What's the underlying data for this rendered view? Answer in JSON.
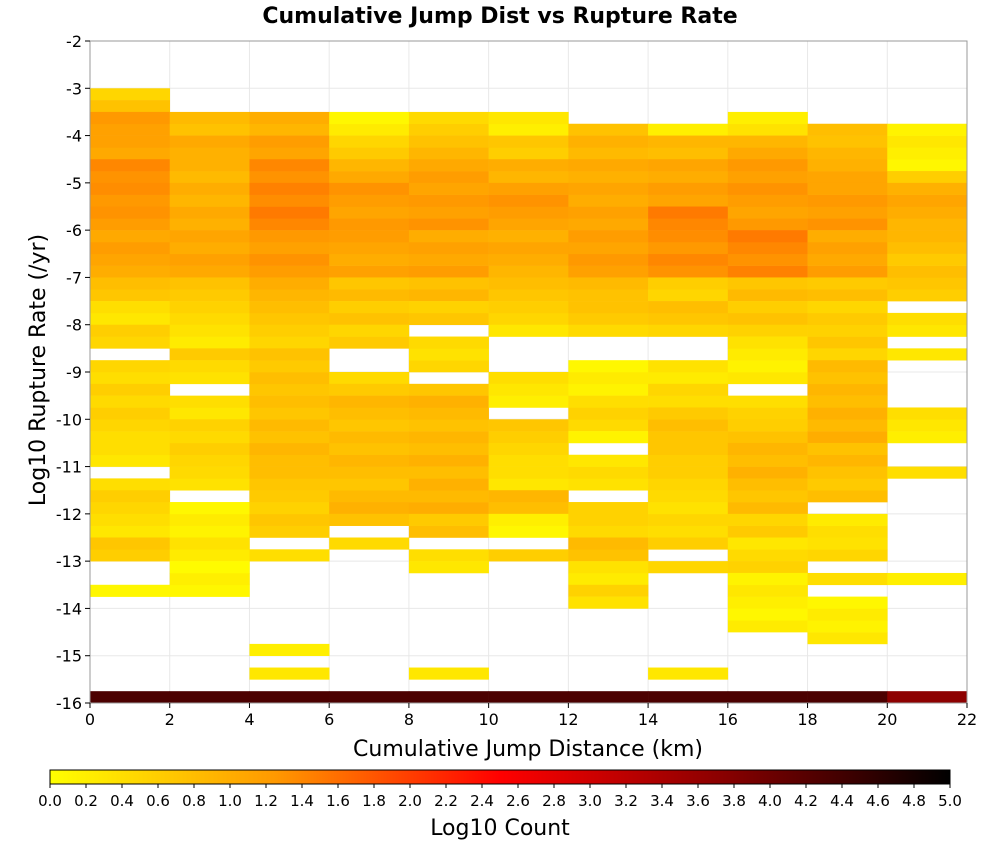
{
  "chart_data": {
    "type": "heatmap",
    "title": "Cumulative Jump Dist vs Rupture Rate",
    "xlabel": "Cumulative Jump Distance (km)",
    "ylabel": "Log10 Rupture Rate (/yr)",
    "xlim": [
      0,
      22
    ],
    "ylim": [
      -16,
      -2
    ],
    "x_ticks": [
      "0",
      "2",
      "4",
      "6",
      "8",
      "10",
      "12",
      "14",
      "16",
      "18",
      "20",
      "22"
    ],
    "y_ticks": [
      "-2",
      "-3",
      "-4",
      "-5",
      "-6",
      "-7",
      "-8",
      "-9",
      "-10",
      "-11",
      "-12",
      "-13",
      "-14",
      "-15",
      "-16"
    ],
    "x_bin_width": 2,
    "y_bin_height": 0.25,
    "colorbar": {
      "label": "Log10 Count",
      "range": [
        0,
        5
      ],
      "ticks": [
        "0.0",
        "0.2",
        "0.4",
        "0.6",
        "0.8",
        "1.0",
        "1.2",
        "1.4",
        "1.6",
        "1.8",
        "2.0",
        "2.2",
        "2.4",
        "2.6",
        "2.8",
        "3.0",
        "3.2",
        "3.4",
        "3.6",
        "3.8",
        "4.0",
        "4.2",
        "4.4",
        "4.6",
        "4.8",
        "5.0"
      ],
      "colors": [
        "#ffff00",
        "#ff9900",
        "#ff0000",
        "#880000",
        "#000000"
      ]
    },
    "cells": [
      {
        "x0": 0,
        "runs": [
          [
            -3.25,
            -3.0,
            0.6
          ],
          [
            -3.5,
            -3.25,
            0.85
          ],
          [
            -4.0,
            -3.5,
            1.25
          ],
          [
            -4.5,
            -4.0,
            1.15
          ],
          [
            -5.0,
            -4.5,
            1.4
          ],
          [
            -5.5,
            -5.0,
            1.35
          ],
          [
            -6.0,
            -5.5,
            1.3
          ],
          [
            -7.0,
            -6.0,
            1.1
          ],
          [
            -7.5,
            -7.0,
            0.8
          ],
          [
            -8.0,
            -7.5,
            0.4
          ],
          [
            -8.5,
            -8.0,
            0.6
          ],
          [
            -9.25,
            -8.75,
            0.5
          ],
          [
            -9.5,
            -9.25,
            0.7
          ],
          [
            -10.5,
            -9.5,
            0.5
          ],
          [
            -11.0,
            -10.5,
            0.4
          ],
          [
            -11.5,
            -11.25,
            0.5
          ],
          [
            -12.0,
            -11.5,
            0.6
          ],
          [
            -12.5,
            -12.0,
            0.4
          ],
          [
            -13.0,
            -12.5,
            0.7
          ],
          [
            -13.75,
            -13.5,
            0.2
          ]
        ]
      },
      {
        "x0": 2,
        "runs": [
          [
            -4.0,
            -3.5,
            0.8
          ],
          [
            -4.5,
            -4.0,
            1.0
          ],
          [
            -5.0,
            -4.5,
            0.9
          ],
          [
            -6.0,
            -5.0,
            1.0
          ],
          [
            -7.0,
            -6.0,
            1.1
          ],
          [
            -7.5,
            -7.0,
            0.7
          ],
          [
            -8.0,
            -7.5,
            0.5
          ],
          [
            -8.5,
            -8.0,
            0.3
          ],
          [
            -8.75,
            -8.5,
            0.7
          ],
          [
            -9.25,
            -8.75,
            0.4
          ],
          [
            -10.0,
            -9.5,
            0.35
          ],
          [
            -11.0,
            -10.0,
            0.55
          ],
          [
            -11.5,
            -11.0,
            0.4
          ],
          [
            -12.5,
            -11.75,
            0.2
          ],
          [
            -13.0,
            -12.5,
            0.3
          ],
          [
            -13.75,
            -13.0,
            0.15
          ]
        ]
      },
      {
        "x0": 4,
        "runs": [
          [
            -4.0,
            -3.5,
            0.9
          ],
          [
            -4.5,
            -4.0,
            1.1
          ],
          [
            -5.0,
            -4.5,
            1.3
          ],
          [
            -6.0,
            -5.0,
            1.4
          ],
          [
            -7.0,
            -6.0,
            1.2
          ],
          [
            -7.5,
            -7.0,
            0.9
          ],
          [
            -8.0,
            -7.5,
            0.7
          ],
          [
            -8.5,
            -8.0,
            0.5
          ],
          [
            -9.5,
            -8.5,
            0.7
          ],
          [
            -11.0,
            -9.5,
            0.8
          ],
          [
            -11.5,
            -11.0,
            0.7
          ],
          [
            -12.5,
            -11.5,
            0.6
          ],
          [
            -13.0,
            -12.75,
            0.4
          ],
          [
            -15.0,
            -14.75,
            0.2
          ],
          [
            -15.5,
            -15.25,
            0.3
          ]
        ]
      },
      {
        "x0": 6,
        "runs": [
          [
            -4.0,
            -3.5,
            0.2
          ],
          [
            -4.5,
            -4.0,
            0.6
          ],
          [
            -5.0,
            -4.5,
            1.0
          ],
          [
            -6.0,
            -5.0,
            1.2
          ],
          [
            -7.0,
            -6.0,
            1.1
          ],
          [
            -7.5,
            -7.0,
            0.8
          ],
          [
            -8.0,
            -7.5,
            0.7
          ],
          [
            -8.5,
            -8.0,
            0.6
          ],
          [
            -9.25,
            -9.0,
            0.4
          ],
          [
            -9.5,
            -9.25,
            0.6
          ],
          [
            -11.75,
            -9.5,
            0.8
          ],
          [
            -12.0,
            -11.75,
            0.9
          ],
          [
            -12.25,
            -12.0,
            0.7
          ],
          [
            -12.75,
            -12.5,
            0.4
          ]
        ]
      },
      {
        "x0": 8,
        "runs": [
          [
            -4.0,
            -3.5,
            0.5
          ],
          [
            -4.5,
            -4.0,
            0.8
          ],
          [
            -5.0,
            -4.5,
            1.1
          ],
          [
            -6.0,
            -5.0,
            1.2
          ],
          [
            -7.0,
            -6.0,
            1.1
          ],
          [
            -7.5,
            -7.0,
            0.8
          ],
          [
            -8.0,
            -7.5,
            0.6
          ],
          [
            -9.0,
            -8.25,
            0.4
          ],
          [
            -9.5,
            -9.25,
            0.6
          ],
          [
            -11.0,
            -9.5,
            0.85
          ],
          [
            -12.0,
            -11.0,
            0.9
          ],
          [
            -12.5,
            -12.0,
            0.7
          ],
          [
            -13.0,
            -12.75,
            0.3
          ],
          [
            -13.25,
            -13.0,
            0.2
          ],
          [
            -15.5,
            -15.25,
            0.2
          ]
        ]
      },
      {
        "x0": 10,
        "runs": [
          [
            -4.0,
            -3.5,
            0.3
          ],
          [
            -4.5,
            -4.0,
            0.7
          ],
          [
            -5.0,
            -4.5,
            1.0
          ],
          [
            -6.0,
            -5.0,
            1.2
          ],
          [
            -7.0,
            -6.0,
            1.0
          ],
          [
            -7.5,
            -7.0,
            0.8
          ],
          [
            -8.0,
            -7.5,
            0.6
          ],
          [
            -8.25,
            -8.0,
            0.4
          ],
          [
            -9.25,
            -9.0,
            0.5
          ],
          [
            -9.75,
            -9.25,
            0.3
          ],
          [
            -10.5,
            -10.0,
            0.7
          ],
          [
            -11.0,
            -10.5,
            0.5
          ],
          [
            -11.5,
            -11.0,
            0.4
          ],
          [
            -12.0,
            -11.5,
            0.9
          ],
          [
            -12.5,
            -12.0,
            0.2
          ],
          [
            -13.0,
            -12.75,
            0.7
          ]
        ]
      },
      {
        "x0": 12,
        "runs": [
          [
            -4.0,
            -3.75,
            0.8
          ],
          [
            -4.5,
            -4.0,
            0.9
          ],
          [
            -5.0,
            -4.5,
            1.0
          ],
          [
            -6.0,
            -5.0,
            1.1
          ],
          [
            -7.0,
            -6.0,
            1.2
          ],
          [
            -7.5,
            -7.0,
            0.8
          ],
          [
            -8.0,
            -7.5,
            0.7
          ],
          [
            -8.25,
            -8.0,
            0.5
          ],
          [
            -9.5,
            -8.75,
            0.2
          ],
          [
            -10.25,
            -9.5,
            0.5
          ],
          [
            -10.5,
            -10.25,
            0.2
          ],
          [
            -11.5,
            -10.75,
            0.4
          ],
          [
            -12.0,
            -11.75,
            0.6
          ],
          [
            -12.5,
            -12.0,
            0.5
          ],
          [
            -13.0,
            -12.5,
            0.8
          ],
          [
            -13.5,
            -13.0,
            0.3
          ],
          [
            -13.75,
            -13.5,
            0.6
          ],
          [
            -14.0,
            -13.75,
            0.4
          ]
        ]
      },
      {
        "x0": 14,
        "runs": [
          [
            -4.0,
            -3.75,
            0.2
          ],
          [
            -4.5,
            -4.0,
            0.8
          ],
          [
            -5.0,
            -4.5,
            1.0
          ],
          [
            -5.5,
            -5.0,
            1.1
          ],
          [
            -6.0,
            -5.5,
            1.4
          ],
          [
            -7.0,
            -6.0,
            1.3
          ],
          [
            -7.5,
            -7.0,
            0.5
          ],
          [
            -8.0,
            -7.5,
            0.7
          ],
          [
            -8.25,
            -8.0,
            0.5
          ],
          [
            -9.25,
            -8.75,
            0.25
          ],
          [
            -9.75,
            -9.25,
            0.4
          ],
          [
            -10.5,
            -9.75,
            0.7
          ],
          [
            -11.0,
            -10.5,
            0.6
          ],
          [
            -11.5,
            -11.0,
            0.5
          ],
          [
            -12.5,
            -11.5,
            0.4
          ],
          [
            -12.75,
            -12.5,
            0.6
          ],
          [
            -13.25,
            -13.0,
            0.5
          ],
          [
            -15.5,
            -15.25,
            0.3
          ]
        ]
      },
      {
        "x0": 16,
        "runs": [
          [
            -4.0,
            -3.5,
            0.3
          ],
          [
            -4.5,
            -4.0,
            1.0
          ],
          [
            -6.0,
            -4.5,
            1.2
          ],
          [
            -7.0,
            -6.0,
            1.4
          ],
          [
            -7.5,
            -7.0,
            0.8
          ],
          [
            -8.0,
            -7.5,
            0.7
          ],
          [
            -8.25,
            -8.0,
            0.5
          ],
          [
            -9.25,
            -8.25,
            0.25
          ],
          [
            -10.0,
            -9.5,
            0.5
          ],
          [
            -10.5,
            -10.0,
            0.7
          ],
          [
            -11.25,
            -10.5,
            0.9
          ],
          [
            -12.0,
            -11.25,
            0.8
          ],
          [
            -12.5,
            -12.0,
            0.6
          ],
          [
            -13.0,
            -12.5,
            0.4
          ],
          [
            -13.25,
            -13.0,
            0.5
          ],
          [
            -14.5,
            -13.25,
            0.2
          ]
        ]
      },
      {
        "x0": 18,
        "runs": [
          [
            -4.0,
            -3.75,
            0.7
          ],
          [
            -4.5,
            -4.0,
            0.8
          ],
          [
            -5.0,
            -4.5,
            1.0
          ],
          [
            -6.0,
            -5.0,
            1.2
          ],
          [
            -7.0,
            -6.0,
            1.1
          ],
          [
            -7.5,
            -7.0,
            0.7
          ],
          [
            -8.5,
            -7.5,
            0.6
          ],
          [
            -8.75,
            -8.5,
            0.4
          ],
          [
            -9.5,
            -8.75,
            0.8
          ],
          [
            -10.5,
            -9.5,
            0.9
          ],
          [
            -11.0,
            -10.5,
            0.8
          ],
          [
            -11.75,
            -11.0,
            0.7
          ],
          [
            -12.5,
            -12.0,
            0.3
          ],
          [
            -13.0,
            -12.5,
            0.4
          ],
          [
            -13.5,
            -13.25,
            0.3
          ],
          [
            -14.75,
            -13.75,
            0.2
          ]
        ]
      },
      {
        "x0": 20,
        "runs": [
          [
            -4.75,
            -3.75,
            0.2
          ],
          [
            -5.0,
            -4.75,
            0.7
          ],
          [
            -6.0,
            -5.0,
            1.0
          ],
          [
            -6.5,
            -6.0,
            0.9
          ],
          [
            -7.5,
            -6.5,
            0.7
          ],
          [
            -8.25,
            -7.75,
            0.4
          ],
          [
            -8.75,
            -8.5,
            0.4
          ],
          [
            -10.5,
            -9.75,
            0.3
          ],
          [
            -11.25,
            -11.0,
            0.5
          ],
          [
            -13.5,
            -13.25,
            0.3
          ]
        ]
      }
    ],
    "bottom_row": {
      "y0": -16,
      "y1": -15.75,
      "values": [
        4.3,
        4.3,
        4.3,
        4.3,
        4.3,
        4.3,
        4.3,
        4.3,
        4.3,
        4.3,
        3.7
      ]
    }
  }
}
